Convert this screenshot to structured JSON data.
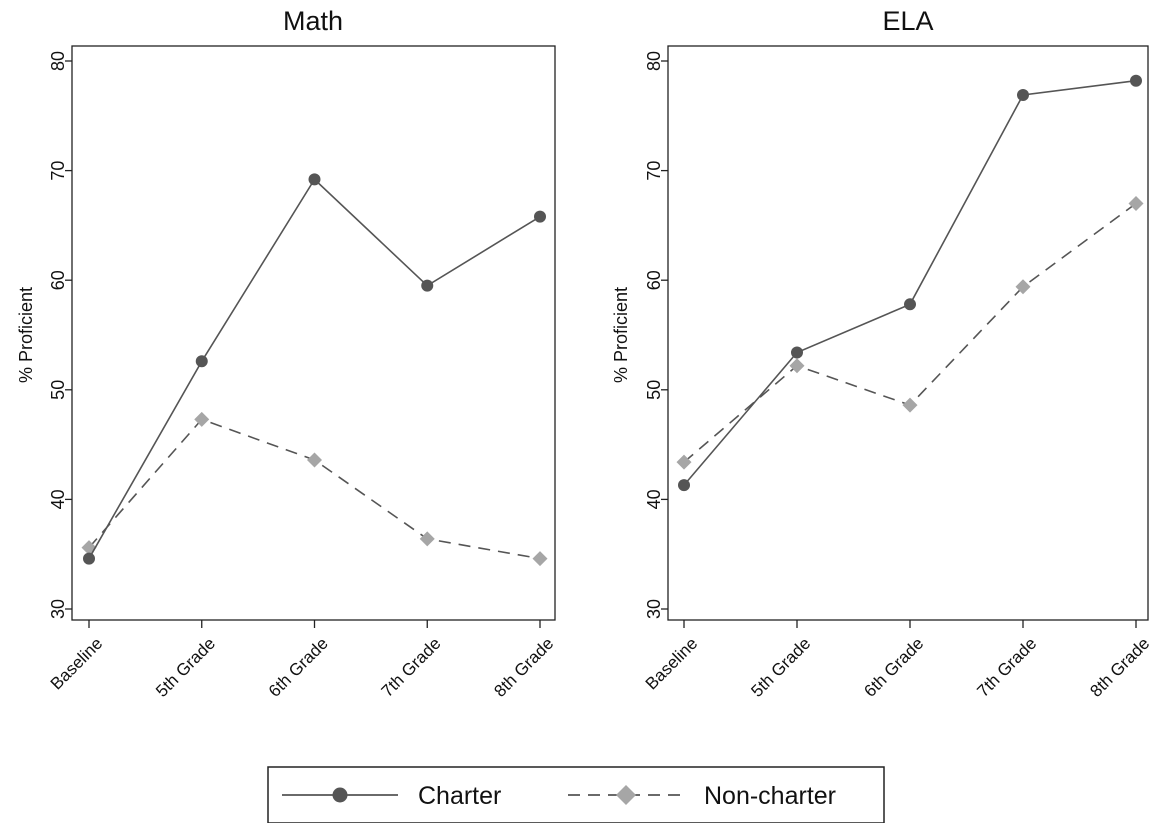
{
  "legend": {
    "charter_label": "Charter",
    "noncharter_label": "Non-charter"
  },
  "colors": {
    "charter": "#555555",
    "noncharter": "#a6a6a6",
    "axis": "#222222"
  },
  "chart_data": [
    {
      "type": "line",
      "title": "Math",
      "xlabel": "",
      "ylabel": "% Proficient",
      "ylim": [
        30,
        80
      ],
      "yticks": [
        30,
        40,
        50,
        60,
        70,
        80
      ],
      "grid": false,
      "categories": [
        "Baseline",
        "5th Grade",
        "6th Grade",
        "7th Grade",
        "8th Grade"
      ],
      "series": [
        {
          "name": "Charter",
          "marker": "circle",
          "line": "solid",
          "values": [
            34.6,
            52.6,
            69.2,
            59.5,
            65.8
          ]
        },
        {
          "name": "Non-charter",
          "marker": "diamond",
          "line": "dashed",
          "values": [
            35.6,
            47.3,
            43.6,
            36.4,
            34.6
          ]
        }
      ]
    },
    {
      "type": "line",
      "title": "ELA",
      "xlabel": "",
      "ylabel": "% Proficient",
      "ylim": [
        30,
        80
      ],
      "yticks": [
        30,
        40,
        50,
        60,
        70,
        80
      ],
      "grid": false,
      "categories": [
        "Baseline",
        "5th Grade",
        "6th Grade",
        "7th Grade",
        "8th Grade"
      ],
      "series": [
        {
          "name": "Charter",
          "marker": "circle",
          "line": "solid",
          "values": [
            41.3,
            53.4,
            57.8,
            76.9,
            78.2
          ]
        },
        {
          "name": "Non-charter",
          "marker": "diamond",
          "line": "dashed",
          "values": [
            43.4,
            52.2,
            48.6,
            59.4,
            67.0
          ]
        }
      ]
    }
  ]
}
